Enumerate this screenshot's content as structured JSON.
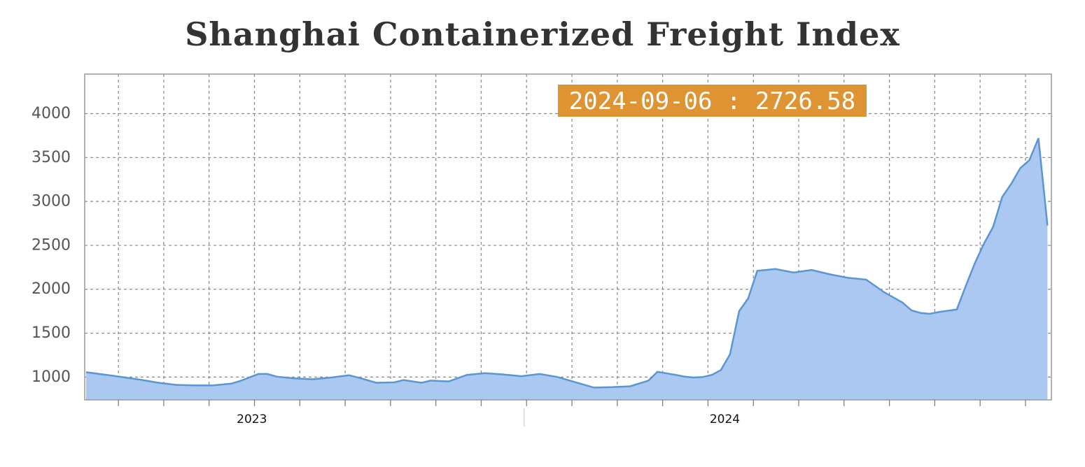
{
  "chart_data": {
    "type": "area",
    "title": "Shanghai Containerized Freight Index",
    "xlabel": "",
    "ylabel": "",
    "ylim": [
      740,
      4450
    ],
    "xlim": [
      "2022-08-25",
      "2024-09-09"
    ],
    "y_ticks": [
      1000,
      1500,
      2000,
      2500,
      3000,
      3500,
      4000
    ],
    "x_tick_labels": [
      {
        "date": "2023-01-01",
        "label": "2023"
      },
      {
        "date": "2024-01-01",
        "label": "2024"
      }
    ],
    "grid": true,
    "legend": "none",
    "tooltip": {
      "date": "2024-09-06",
      "value": 2726.58,
      "text": "2024-09-06 : 2726.58"
    },
    "series": [
      {
        "x": [
          "2022-08-26",
          "2022-09-16",
          "2022-10-07",
          "2022-10-21",
          "2022-11-04",
          "2022-11-18",
          "2022-12-02",
          "2022-12-16",
          "2022-12-23",
          "2023-01-06",
          "2023-01-13",
          "2023-01-20",
          "2023-02-03",
          "2023-02-17",
          "2023-03-03",
          "2023-03-17",
          "2023-03-24",
          "2023-04-07",
          "2023-04-21",
          "2023-04-28",
          "2023-05-12",
          "2023-05-19",
          "2023-06-02",
          "2023-06-16",
          "2023-06-30",
          "2023-07-14",
          "2023-07-28",
          "2023-08-11",
          "2023-08-25",
          "2023-09-08",
          "2023-09-22",
          "2023-10-06",
          "2023-10-20",
          "2023-11-03",
          "2023-11-10",
          "2023-11-24",
          "2023-12-01",
          "2023-12-08",
          "2023-12-15",
          "2023-12-22",
          "2023-12-29",
          "2024-01-05",
          "2024-01-12",
          "2024-01-19",
          "2024-01-26",
          "2024-02-09",
          "2024-02-23",
          "2024-03-08",
          "2024-03-22",
          "2024-04-05",
          "2024-04-19",
          "2024-05-03",
          "2024-05-17",
          "2024-05-24",
          "2024-05-31",
          "2024-06-07",
          "2024-06-14",
          "2024-06-21",
          "2024-06-28",
          "2024-07-05",
          "2024-07-12",
          "2024-07-19",
          "2024-07-26",
          "2024-08-02",
          "2024-08-09",
          "2024-08-16",
          "2024-08-23",
          "2024-08-30",
          "2024-09-06"
        ],
        "values": [
          1055,
          1015,
          970,
          935,
          910,
          905,
          905,
          925,
          955,
          1035,
          1035,
          1005,
          985,
          975,
          995,
          1020,
          995,
          935,
          940,
          965,
          935,
          960,
          950,
          1025,
          1045,
          1030,
          1010,
          1035,
          1000,
          940,
          880,
          885,
          895,
          960,
          1060,
          1025,
          1005,
          995,
          1000,
          1025,
          1080,
          1260,
          1750,
          1895,
          2210,
          2230,
          2190,
          2220,
          2170,
          2130,
          2110,
          1965,
          1850,
          1760,
          1730,
          1720,
          1740,
          1755,
          1770,
          2040,
          2300,
          2520,
          2710,
          3050,
          3200,
          3380,
          3470,
          3720,
          2726.58
        ]
      }
    ]
  }
}
